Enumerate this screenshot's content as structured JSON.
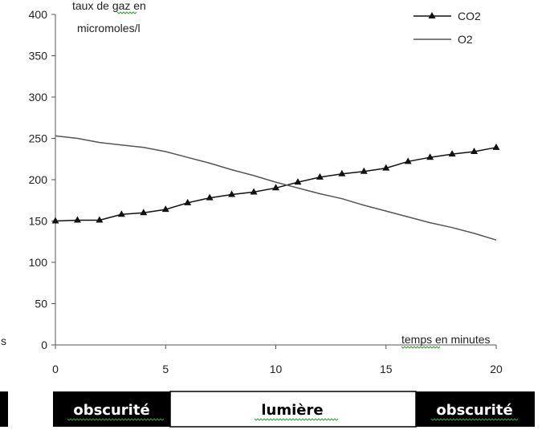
{
  "chart_data": {
    "type": "line",
    "ylabel_line1": "taux de gaz en",
    "ylabel_line2": "micromoles/l",
    "xlabel": "temps en minutes",
    "left_cut_text": "s",
    "xlim": [
      0,
      20
    ],
    "ylim": [
      0,
      400
    ],
    "x_ticks": [
      "0",
      "5",
      "10",
      "15",
      "20"
    ],
    "y_ticks": [
      "0",
      "50",
      "100",
      "150",
      "200",
      "250",
      "300",
      "350",
      "400"
    ],
    "legend_position": "top-right",
    "series": [
      {
        "name": "CO2",
        "marker": "triangle",
        "color": "#111111",
        "x": [
          0,
          1,
          2,
          3,
          4,
          5,
          6,
          7,
          8,
          9,
          10,
          11,
          12,
          13,
          14,
          15,
          16,
          17,
          18,
          19,
          20
        ],
        "y": [
          150,
          151,
          151,
          158,
          160,
          164,
          172,
          178,
          182,
          185,
          190,
          197,
          203,
          207,
          210,
          214,
          222,
          227,
          231,
          234,
          239
        ]
      },
      {
        "name": "O2",
        "marker": "none",
        "color": "#555555",
        "x": [
          0,
          1,
          2,
          3,
          4,
          5,
          6,
          7,
          8,
          9,
          10,
          11,
          12,
          13,
          14,
          15,
          16,
          17,
          18,
          19,
          20
        ],
        "y": [
          253,
          250,
          245,
          242,
          239,
          234,
          227,
          220,
          212,
          205,
          197,
          190,
          183,
          177,
          169,
          162,
          155,
          148,
          142,
          135,
          127
        ]
      }
    ]
  },
  "bands": [
    {
      "label": "obscurité",
      "color": "#000000",
      "text_color": "#ffffff"
    },
    {
      "label": "lumière",
      "color": "#ffffff",
      "text_color": "#000000"
    },
    {
      "label": "obscurité",
      "color": "#000000",
      "text_color": "#ffffff"
    }
  ]
}
